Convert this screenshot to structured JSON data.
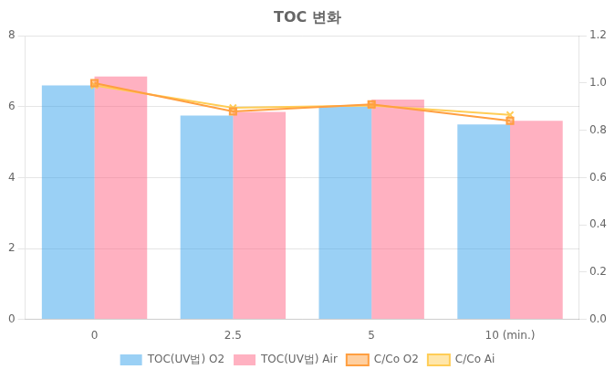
{
  "chart_data": {
    "type": "bar",
    "title": "TOC 변화",
    "categories": [
      "0",
      "2.5",
      "5",
      "10 (min.)"
    ],
    "series": [
      {
        "name": "TOC(UV법) O2",
        "type": "bar",
        "values": [
          6.6,
          5.75,
          6.0,
          5.5
        ]
      },
      {
        "name": "TOC(UV법) Air",
        "type": "bar",
        "values": [
          6.85,
          5.85,
          6.2,
          5.6
        ]
      },
      {
        "name": "C/Co O2",
        "type": "line",
        "marker": "square",
        "axis": "y2",
        "values": [
          1.0,
          0.88,
          0.91,
          0.84
        ]
      },
      {
        "name": "C/Co Ai",
        "type": "line",
        "marker": "x",
        "axis": "y2",
        "values": [
          0.99,
          0.895,
          0.905,
          0.865
        ]
      }
    ],
    "ylim": [
      0,
      8.0
    ],
    "yticks": [
      0,
      2,
      4,
      6,
      8
    ],
    "y2lim": [
      0.0,
      1.2
    ],
    "y2ticks": [
      {
        "value": 0,
        "label": "0.0"
      },
      0.2,
      0.4,
      0.6,
      0.8,
      {
        "value": 1,
        "label": "1.0"
      },
      1.2
    ],
    "grid": true,
    "legend": "bottom"
  }
}
